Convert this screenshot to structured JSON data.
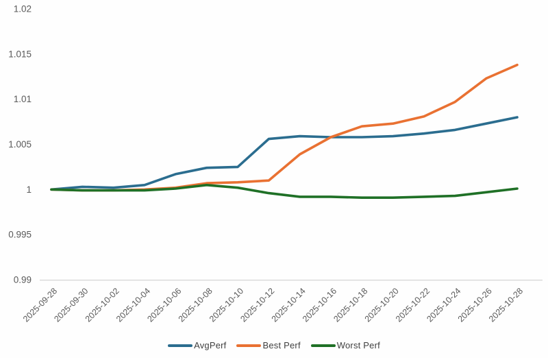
{
  "chart_data": {
    "type": "line",
    "title": "",
    "xlabel": "",
    "ylabel": "",
    "x": [
      "2025-09-28",
      "2025-09-30",
      "2025-10-02",
      "2025-10-04",
      "2025-10-06",
      "2025-10-08",
      "2025-10-10",
      "2025-10-12",
      "2025-10-14",
      "2025-10-16",
      "2025-10-18",
      "2025-10-20",
      "2025-10-22",
      "2025-10-24",
      "2025-10-26",
      "2025-10-28"
    ],
    "series": [
      {
        "name": "AvgPerf",
        "color": "#2b6d8f",
        "values": [
          1.0,
          1.0003,
          1.0002,
          1.0005,
          1.0017,
          1.0024,
          1.0025,
          1.0056,
          1.0059,
          1.0058,
          1.0058,
          1.0059,
          1.0062,
          1.0066,
          1.0073,
          1.008
        ]
      },
      {
        "name": "Best Perf",
        "color": "#e97132",
        "values": [
          1.0,
          0.9999,
          0.9999,
          1.0,
          1.0002,
          1.0007,
          1.0008,
          1.001,
          1.0039,
          1.0058,
          1.007,
          1.0073,
          1.0081,
          1.0097,
          1.0123,
          1.0138
        ]
      },
      {
        "name": "Worst Perf",
        "color": "#1f7026",
        "values": [
          1.0,
          0.9999,
          0.9999,
          0.9999,
          1.0001,
          1.0005,
          1.0002,
          0.9996,
          0.9992,
          0.9992,
          0.9991,
          0.9991,
          0.9992,
          0.9993,
          0.9997,
          1.0001
        ]
      }
    ],
    "y_axis": {
      "tick_labels": [
        "1.02",
        "1.015",
        "1.01",
        "1.005",
        "1",
        "0.995",
        "0.99"
      ],
      "tick_values": [
        1.02,
        1.015,
        1.01,
        1.005,
        1.0,
        0.995,
        0.99
      ]
    },
    "ylim": [
      0.99,
      1.02
    ],
    "grid": false,
    "legend_position": "bottom-center",
    "colors": {
      "axis_line": "#d9d9d9",
      "tick_text": "#595959",
      "legend_text": "#3f3f3f",
      "background": "#fefefe"
    }
  }
}
